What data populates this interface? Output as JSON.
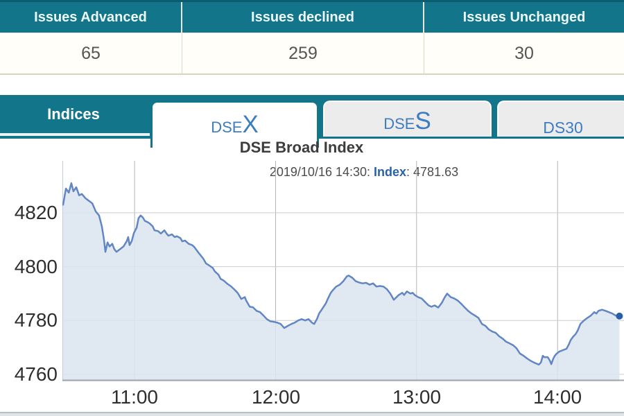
{
  "market_summary": {
    "columns": [
      {
        "header": "Issues Advanced",
        "value": "65"
      },
      {
        "header": "Issues declined",
        "value": "259"
      },
      {
        "header": "Issues Unchanged",
        "value": "30"
      }
    ]
  },
  "tabs": {
    "panel_label": "Indices",
    "items": [
      {
        "name": "DSEX",
        "prefix": "DSE",
        "suffix": "X",
        "active": true
      },
      {
        "name": "DSES",
        "prefix": "DSE",
        "suffix": "S",
        "active": false
      },
      {
        "name": "DS30",
        "prefix": "DS30",
        "suffix": "",
        "active": false
      }
    ]
  },
  "chart_data": {
    "type": "area",
    "title": "DSE Broad Index",
    "subtitle": {
      "time": "2019/10/16 14:30: ",
      "label": "Index",
      "value": ": 4781.63"
    },
    "xlabel": "",
    "ylabel": "",
    "grid": true,
    "legend": "none",
    "x_ticks": [
      {
        "label": "11:00",
        "t": 660
      },
      {
        "label": "12:00",
        "t": 720
      },
      {
        "label": "13:00",
        "t": 780
      },
      {
        "label": "14:00",
        "t": 840
      }
    ],
    "y_ticks": [
      {
        "label": "4820",
        "v": 4820
      },
      {
        "label": "4800",
        "v": 4800
      },
      {
        "label": "4780",
        "v": 4780
      },
      {
        "label": "4760",
        "v": 4760
      }
    ],
    "x_range_minutes": [
      629.3,
      871.2
    ],
    "ylim": [
      4757.4,
      4839.3
    ],
    "line_color": "#6186c3",
    "fill_color": "#dbe4f0",
    "marker_color": "#2a5ea9",
    "last_point_value": 4781.63,
    "points": [
      [
        629.6,
        4823
      ],
      [
        630.8,
        4829
      ],
      [
        632.0,
        4827.5
      ],
      [
        633.1,
        4831
      ],
      [
        634.0,
        4828
      ],
      [
        635.2,
        4829.5
      ],
      [
        636.4,
        4826.5
      ],
      [
        637.6,
        4827
      ],
      [
        639.0,
        4825.5
      ],
      [
        640.5,
        4824.5
      ],
      [
        642.0,
        4823.5
      ],
      [
        643.5,
        4820.5
      ],
      [
        644.9,
        4819
      ],
      [
        646.1,
        4815
      ],
      [
        647.0,
        4810
      ],
      [
        647.6,
        4805.5
      ],
      [
        648.5,
        4809
      ],
      [
        649.4,
        4807.5
      ],
      [
        650.5,
        4808.5
      ],
      [
        651.4,
        4806.5
      ],
      [
        652.3,
        4805.5
      ],
      [
        653.8,
        4806.5
      ],
      [
        655.3,
        4807.5
      ],
      [
        656.7,
        4809.5
      ],
      [
        657.3,
        4811
      ],
      [
        657.9,
        4808
      ],
      [
        658.8,
        4809.5
      ],
      [
        659.7,
        4812.5
      ],
      [
        660.9,
        4814.5
      ],
      [
        661.7,
        4818
      ],
      [
        662.6,
        4819
      ],
      [
        663.5,
        4818.3
      ],
      [
        664.4,
        4817
      ],
      [
        665.6,
        4816.5
      ],
      [
        666.5,
        4816
      ],
      [
        667.7,
        4815
      ],
      [
        668.5,
        4813.5
      ],
      [
        670.0,
        4813.2
      ],
      [
        671.2,
        4812.3
      ],
      [
        672.7,
        4813.5
      ],
      [
        673.6,
        4812.3
      ],
      [
        674.4,
        4811.5
      ],
      [
        675.9,
        4812
      ],
      [
        677.1,
        4811
      ],
      [
        678.0,
        4811.3
      ],
      [
        679.5,
        4810.6
      ],
      [
        680.3,
        4809.4
      ],
      [
        681.5,
        4809.7
      ],
      [
        683.0,
        4808.5
      ],
      [
        684.5,
        4808
      ],
      [
        685.4,
        4807.3
      ],
      [
        687.4,
        4805
      ],
      [
        689.2,
        4803
      ],
      [
        690.4,
        4801.2
      ],
      [
        691.8,
        4800.4
      ],
      [
        693.3,
        4799.5
      ],
      [
        694.2,
        4798.2
      ],
      [
        695.7,
        4797
      ],
      [
        696.6,
        4795.5
      ],
      [
        698.0,
        4794.8
      ],
      [
        699.5,
        4793.6
      ],
      [
        701.0,
        4792.7
      ],
      [
        702.5,
        4791.5
      ],
      [
        703.9,
        4790.2
      ],
      [
        705.4,
        4788
      ],
      [
        706.9,
        4788.7
      ],
      [
        707.5,
        4787.4
      ],
      [
        709.0,
        4785.1
      ],
      [
        710.4,
        4784.9
      ],
      [
        711.9,
        4783.6
      ],
      [
        713.4,
        4783.1
      ],
      [
        714.9,
        4781.8
      ],
      [
        716.3,
        4780.5
      ],
      [
        717.8,
        4779.7
      ],
      [
        719.3,
        4779.5
      ],
      [
        720.8,
        4779.2
      ],
      [
        722.2,
        4778.7
      ],
      [
        723.7,
        4777.2
      ],
      [
        725.2,
        4778
      ],
      [
        726.7,
        4778.7
      ],
      [
        728.1,
        4779.2
      ],
      [
        729.6,
        4780
      ],
      [
        731.1,
        4780.5
      ],
      [
        732.6,
        4780
      ],
      [
        734.0,
        4780.5
      ],
      [
        735.5,
        4779.2
      ],
      [
        736.4,
        4778.7
      ],
      [
        737.6,
        4780.5
      ],
      [
        738.5,
        4782.6
      ],
      [
        739.9,
        4784.4
      ],
      [
        741.4,
        4786.4
      ],
      [
        742.3,
        4788.2
      ],
      [
        743.5,
        4790.3
      ],
      [
        744.4,
        4791.3
      ],
      [
        745.8,
        4792.6
      ],
      [
        747.3,
        4793.3
      ],
      [
        748.8,
        4794.6
      ],
      [
        750.3,
        4796.4
      ],
      [
        751.1,
        4796.7
      ],
      [
        752.6,
        4795.9
      ],
      [
        754.1,
        4794.6
      ],
      [
        755.6,
        4794.1
      ],
      [
        757.0,
        4793.8
      ],
      [
        758.5,
        4794
      ],
      [
        760.0,
        4793.3
      ],
      [
        761.5,
        4793.8
      ],
      [
        762.9,
        4792.6
      ],
      [
        764.4,
        4792.8
      ],
      [
        765.9,
        4792.6
      ],
      [
        767.4,
        4791.6
      ],
      [
        768.8,
        4790
      ],
      [
        770.3,
        4787.7
      ],
      [
        771.5,
        4788.7
      ],
      [
        772.4,
        4789.5
      ],
      [
        773.9,
        4790.3
      ],
      [
        774.7,
        4789.5
      ],
      [
        775.9,
        4790.8
      ],
      [
        777.4,
        4790
      ],
      [
        778.3,
        4790.3
      ],
      [
        779.2,
        4789.5
      ],
      [
        780.6,
        4788.7
      ],
      [
        782.1,
        4788.2
      ],
      [
        783.6,
        4786.9
      ],
      [
        785.1,
        4785.6
      ],
      [
        786.3,
        4785.1
      ],
      [
        787.7,
        4785.6
      ],
      [
        789.2,
        4784.8
      ],
      [
        790.7,
        4786.5
      ],
      [
        791.9,
        4788.5
      ],
      [
        793.0,
        4790
      ],
      [
        794.5,
        4788.7
      ],
      [
        796.0,
        4788.2
      ],
      [
        797.5,
        4787.4
      ],
      [
        799.0,
        4786.2
      ],
      [
        800.4,
        4784.9
      ],
      [
        801.9,
        4783.6
      ],
      [
        803.4,
        4782.6
      ],
      [
        804.9,
        4781.8
      ],
      [
        806.3,
        4781
      ],
      [
        807.8,
        4778.7
      ],
      [
        809.3,
        4778
      ],
      [
        810.7,
        4776.7
      ],
      [
        812.2,
        4775.9
      ],
      [
        813.7,
        4775.4
      ],
      [
        815.2,
        4774.1
      ],
      [
        816.6,
        4773.3
      ],
      [
        818.1,
        4772.1
      ],
      [
        819.6,
        4771.5
      ],
      [
        821.1,
        4770.8
      ],
      [
        822.5,
        4769.7
      ],
      [
        824.0,
        4767.7
      ],
      [
        825.5,
        4766.9
      ],
      [
        827.0,
        4765.9
      ],
      [
        828.4,
        4765.1
      ],
      [
        829.9,
        4764.4
      ],
      [
        832.0,
        4763.6
      ],
      [
        832.9,
        4764.4
      ],
      [
        833.7,
        4766.9
      ],
      [
        834.3,
        4766.4
      ],
      [
        835.8,
        4766.4
      ],
      [
        836.7,
        4765.1
      ],
      [
        837.3,
        4763.8
      ],
      [
        838.2,
        4765.9
      ],
      [
        838.8,
        4766.9
      ],
      [
        839.6,
        4767.7
      ],
      [
        840.8,
        4768.5
      ],
      [
        842.3,
        4769
      ],
      [
        843.8,
        4769.5
      ],
      [
        844.7,
        4771
      ],
      [
        845.6,
        4772.8
      ],
      [
        846.7,
        4774.1
      ],
      [
        847.6,
        4774.9
      ],
      [
        848.5,
        4776.2
      ],
      [
        849.7,
        4778.7
      ],
      [
        851.2,
        4780
      ],
      [
        852.7,
        4781
      ],
      [
        854.1,
        4781.8
      ],
      [
        855.6,
        4783.1
      ],
      [
        856.5,
        4782.6
      ],
      [
        857.4,
        4783.6
      ],
      [
        858.9,
        4784
      ],
      [
        860.4,
        4783.6
      ],
      [
        861.8,
        4783.1
      ],
      [
        863.3,
        4782.6
      ],
      [
        864.8,
        4781.8
      ],
      [
        866.3,
        4781.63
      ]
    ]
  }
}
